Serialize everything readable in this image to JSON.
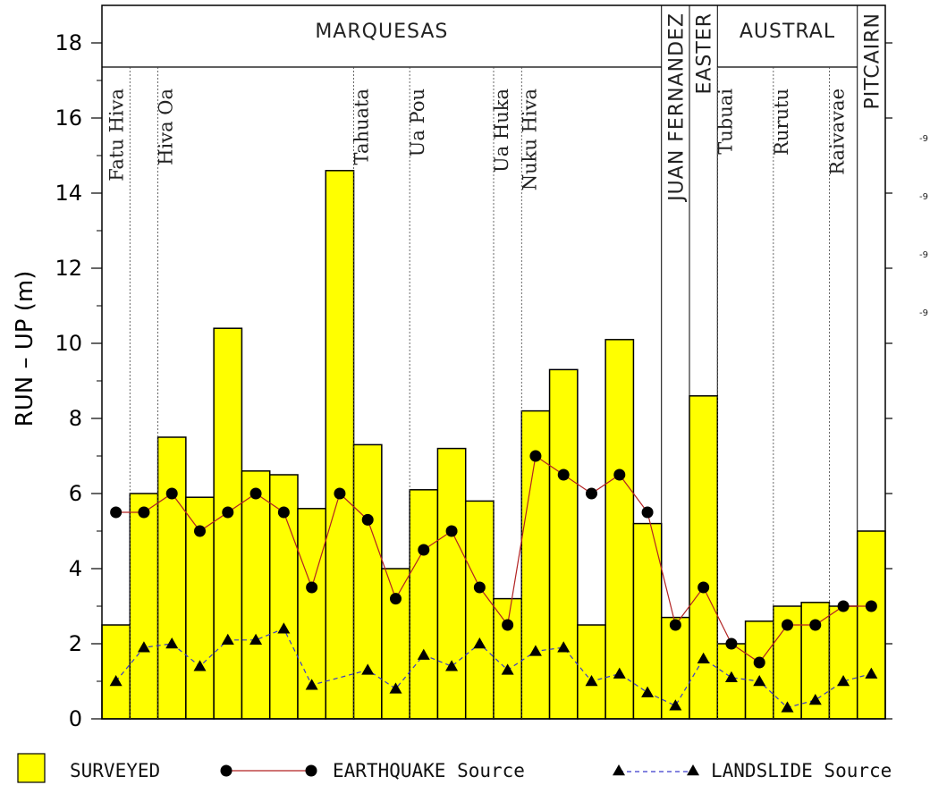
{
  "chart_data": {
    "type": "bar",
    "ylabel": "RUN – UP   (m)",
    "ylim": [
      0,
      19
    ],
    "yticks": [
      0,
      2,
      4,
      6,
      8,
      10,
      12,
      14,
      16,
      18
    ],
    "grid": false,
    "surveyed": [
      2.5,
      6.0,
      7.5,
      5.9,
      10.4,
      6.6,
      6.5,
      5.6,
      14.6,
      7.3,
      4.0,
      6.1,
      7.2,
      5.8,
      3.2,
      8.2,
      9.3,
      2.5,
      10.1,
      5.2,
      2.7,
      8.6,
      2.0,
      2.6,
      3.0,
      3.1,
      3.0,
      5.0
    ],
    "series": [
      {
        "name": "EARTHQUAKE Source",
        "color": "#b22222",
        "points": [
          [
            0,
            5.5
          ],
          [
            1,
            5.5
          ],
          [
            2,
            6.0
          ],
          [
            3,
            5.0
          ],
          [
            4,
            5.5
          ],
          [
            5,
            6.0
          ],
          [
            6,
            5.5
          ],
          [
            7,
            3.5
          ],
          [
            8,
            6.0
          ],
          [
            9,
            5.3
          ],
          [
            10,
            3.2
          ],
          [
            11,
            4.5
          ],
          [
            12,
            5.0
          ],
          [
            13,
            3.5
          ],
          [
            14,
            2.5
          ],
          [
            15,
            7.0
          ],
          [
            16,
            6.5
          ],
          [
            17,
            6.0
          ],
          [
            18,
            6.5
          ],
          [
            19,
            5.5
          ],
          [
            20,
            2.5
          ],
          [
            21,
            3.5
          ],
          [
            22,
            2.0
          ],
          [
            23,
            1.5
          ],
          [
            24,
            2.5
          ],
          [
            25,
            2.5
          ],
          [
            26,
            3.0
          ],
          [
            27,
            3.0
          ]
        ]
      },
      {
        "name": "LANDSLIDE  Source",
        "color": "#3a3acc",
        "points": [
          [
            0,
            1.0
          ],
          [
            1,
            1.9
          ],
          [
            2,
            2.0
          ],
          [
            3,
            1.4
          ],
          [
            4,
            2.1
          ],
          [
            5,
            2.1
          ],
          [
            6,
            2.4
          ],
          [
            7,
            0.9
          ],
          [
            9,
            1.3
          ],
          [
            10,
            0.8
          ],
          [
            11,
            1.7
          ],
          [
            12,
            1.4
          ],
          [
            13,
            2.0
          ],
          [
            14,
            1.3
          ],
          [
            15,
            1.8
          ],
          [
            16,
            1.9
          ],
          [
            17,
            1.0
          ],
          [
            18,
            1.2
          ],
          [
            19,
            0.7
          ],
          [
            20,
            0.35
          ],
          [
            21,
            1.6
          ],
          [
            22,
            1.1
          ],
          [
            23,
            1.0
          ],
          [
            24,
            0.3
          ],
          [
            25,
            0.5
          ],
          [
            26,
            1.0
          ],
          [
            27,
            1.2
          ]
        ]
      }
    ],
    "regions": [
      {
        "label": "MARQUESAS",
        "start": 0,
        "end": 20,
        "orientation": "horizontal"
      },
      {
        "label": "JUAN FERNANDEZ",
        "start": 20,
        "end": 21,
        "orientation": "vertical"
      },
      {
        "label": "EASTER",
        "start": 21,
        "end": 22,
        "orientation": "vertical"
      },
      {
        "label": "AUSTRAL",
        "start": 22,
        "end": 27,
        "orientation": "horizontal"
      },
      {
        "label": "PITCAIRN",
        "start": 27,
        "end": 28,
        "orientation": "vertical"
      }
    ],
    "islands": [
      {
        "label": "Fatu Hiva",
        "start": 1,
        "end": 2
      },
      {
        "label": "Hiva Oa",
        "start": 2,
        "end": 9
      },
      {
        "label": "Tahuata",
        "start": 9,
        "end": 11
      },
      {
        "label": "Ua Pou",
        "start": 11,
        "end": 14
      },
      {
        "label": "Ua Huka",
        "start": 14,
        "end": 15
      },
      {
        "label": "Nuku Hiva",
        "start": 15,
        "end": 20
      },
      {
        "label": "Tubuai",
        "start": 22,
        "end": 24
      },
      {
        "label": "Rurutu",
        "start": 24,
        "end": 26
      },
      {
        "label": "Raivavae",
        "start": 26,
        "end": 27
      }
    ],
    "stray_labels": [
      "-9",
      "-9",
      "-9",
      "-9"
    ],
    "legend": [
      {
        "label": "SURVEYED",
        "kind": "box"
      },
      {
        "label": "EARTHQUAKE Source",
        "kind": "circle-line"
      },
      {
        "label": "LANDSLIDE  Source",
        "kind": "triangle-dash"
      }
    ],
    "colors": {
      "bar_fill": "#ffff00",
      "bar_stroke": "#000000"
    }
  }
}
